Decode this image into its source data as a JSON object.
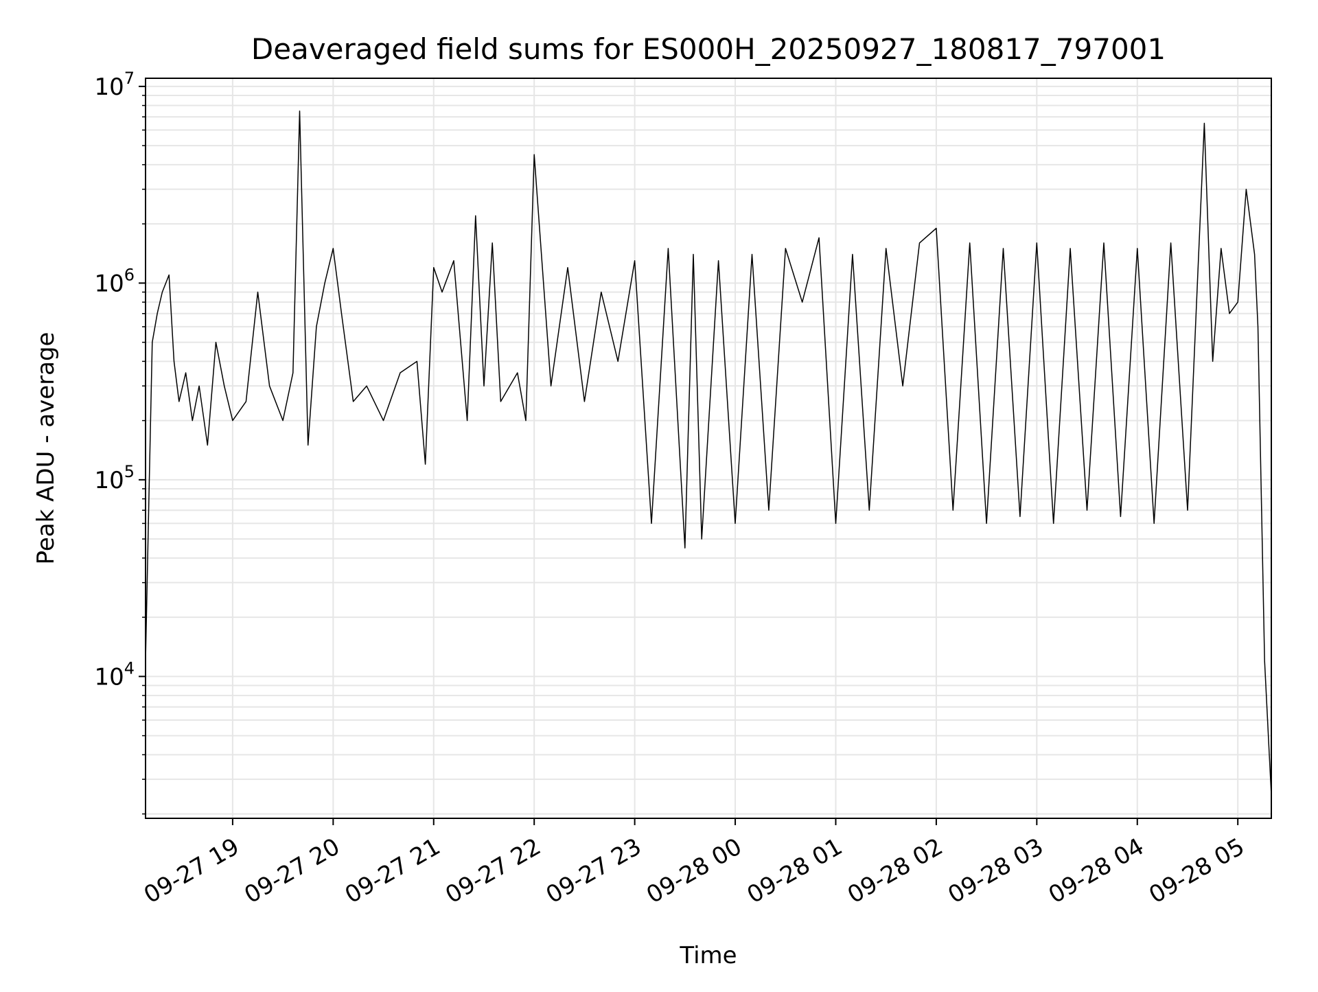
{
  "chart_data": {
    "type": "line",
    "title": "Deaveraged field sums for ES000H_20250927_180817_797001",
    "xlabel": "Time",
    "ylabel": "Peak ADU - average",
    "yscale": "log",
    "ylim": [
      1900,
      11000000
    ],
    "xlim": [
      "2025-09-27 18:08",
      "2025-09-28 05:20"
    ],
    "grid": true,
    "line_color": "#000000",
    "x_ticks": [
      {
        "t": "2025-09-27 19:00",
        "label": "09-27 19"
      },
      {
        "t": "2025-09-27 20:00",
        "label": "09-27 20"
      },
      {
        "t": "2025-09-27 21:00",
        "label": "09-27 21"
      },
      {
        "t": "2025-09-27 22:00",
        "label": "09-27 22"
      },
      {
        "t": "2025-09-27 23:00",
        "label": "09-27 23"
      },
      {
        "t": "2025-09-28 00:00",
        "label": "09-28 00"
      },
      {
        "t": "2025-09-28 01:00",
        "label": "09-28 01"
      },
      {
        "t": "2025-09-28 02:00",
        "label": "09-28 02"
      },
      {
        "t": "2025-09-28 03:00",
        "label": "09-28 03"
      },
      {
        "t": "2025-09-28 04:00",
        "label": "09-28 04"
      },
      {
        "t": "2025-09-28 05:00",
        "label": "09-28 05"
      }
    ],
    "y_ticks": [
      {
        "value": 10000,
        "base": "10",
        "exp": "4"
      },
      {
        "value": 100000,
        "base": "10",
        "exp": "5"
      },
      {
        "value": 1000000,
        "base": "10",
        "exp": "6"
      },
      {
        "value": 10000000,
        "base": "10",
        "exp": "7"
      }
    ],
    "series": [
      {
        "x": [
          "2025-09-27 18:08",
          "2025-09-27 18:10",
          "2025-09-27 18:12",
          "2025-09-27 18:15",
          "2025-09-27 18:18",
          "2025-09-27 18:22",
          "2025-09-27 18:25",
          "2025-09-27 18:28",
          "2025-09-27 18:32",
          "2025-09-27 18:36",
          "2025-09-27 18:40",
          "2025-09-27 18:45",
          "2025-09-27 18:50",
          "2025-09-27 18:55",
          "2025-09-27 19:00",
          "2025-09-27 19:08",
          "2025-09-27 19:15",
          "2025-09-27 19:22",
          "2025-09-27 19:30",
          "2025-09-27 19:36",
          "2025-09-27 19:40",
          "2025-09-27 19:45",
          "2025-09-27 19:50",
          "2025-09-27 19:55",
          "2025-09-27 20:00",
          "2025-09-27 20:05",
          "2025-09-27 20:12",
          "2025-09-27 20:20",
          "2025-09-27 20:30",
          "2025-09-27 20:40",
          "2025-09-27 20:50",
          "2025-09-27 20:55",
          "2025-09-27 21:00",
          "2025-09-27 21:05",
          "2025-09-27 21:12",
          "2025-09-27 21:20",
          "2025-09-27 21:25",
          "2025-09-27 21:30",
          "2025-09-27 21:35",
          "2025-09-27 21:40",
          "2025-09-27 21:50",
          "2025-09-27 21:55",
          "2025-09-27 22:00",
          "2025-09-27 22:10",
          "2025-09-27 22:20",
          "2025-09-27 22:30",
          "2025-09-27 22:40",
          "2025-09-27 22:50",
          "2025-09-27 23:00",
          "2025-09-27 23:10",
          "2025-09-27 23:20",
          "2025-09-27 23:30",
          "2025-09-27 23:35",
          "2025-09-27 23:40",
          "2025-09-27 23:50",
          "2025-09-28 00:00",
          "2025-09-28 00:10",
          "2025-09-28 00:20",
          "2025-09-28 00:30",
          "2025-09-28 00:40",
          "2025-09-28 00:50",
          "2025-09-28 01:00",
          "2025-09-28 01:10",
          "2025-09-28 01:20",
          "2025-09-28 01:30",
          "2025-09-28 01:40",
          "2025-09-28 01:50",
          "2025-09-28 02:00",
          "2025-09-28 02:10",
          "2025-09-28 02:20",
          "2025-09-28 02:30",
          "2025-09-28 02:40",
          "2025-09-28 02:50",
          "2025-09-28 03:00",
          "2025-09-28 03:10",
          "2025-09-28 03:20",
          "2025-09-28 03:30",
          "2025-09-28 03:40",
          "2025-09-28 03:50",
          "2025-09-28 04:00",
          "2025-09-28 04:10",
          "2025-09-28 04:20",
          "2025-09-28 04:30",
          "2025-09-28 04:40",
          "2025-09-28 04:45",
          "2025-09-28 04:50",
          "2025-09-28 04:55",
          "2025-09-28 05:00",
          "2025-09-28 05:05",
          "2025-09-28 05:10",
          "2025-09-28 05:12",
          "2025-09-28 05:16",
          "2025-09-28 05:20"
        ],
        "y": [
          12000,
          80000,
          500000,
          700000,
          900000,
          1100000,
          400000,
          250000,
          350000,
          200000,
          300000,
          150000,
          500000,
          300000,
          200000,
          250000,
          900000,
          300000,
          200000,
          350000,
          7500000,
          150000,
          600000,
          1000000,
          1500000,
          700000,
          250000,
          300000,
          200000,
          350000,
          400000,
          120000,
          1200000,
          900000,
          1300000,
          200000,
          2200000,
          300000,
          1600000,
          250000,
          350000,
          200000,
          4500000,
          300000,
          1200000,
          250000,
          900000,
          400000,
          1300000,
          60000,
          1500000,
          45000,
          1400000,
          50000,
          1300000,
          60000,
          1400000,
          70000,
          1500000,
          800000,
          1700000,
          60000,
          1400000,
          70000,
          1500000,
          300000,
          1600000,
          1900000,
          70000,
          1600000,
          60000,
          1500000,
          65000,
          1600000,
          60000,
          1500000,
          70000,
          1600000,
          65000,
          1500000,
          60000,
          1600000,
          70000,
          6500000,
          400000,
          1500000,
          700000,
          800000,
          3000000,
          1400000,
          600000,
          12000,
          2500
        ]
      }
    ]
  }
}
